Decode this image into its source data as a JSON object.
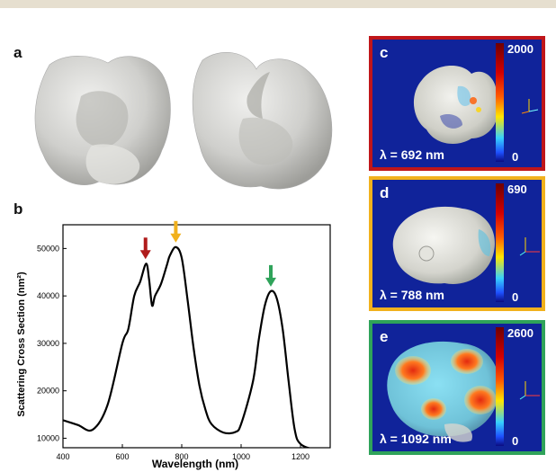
{
  "panels": {
    "a": {
      "letter": "a"
    },
    "b": {
      "letter": "b"
    },
    "c": {
      "letter": "c",
      "lambda": "λ = 692 nm",
      "cbar_max": "2000",
      "cbar_min": "0",
      "border": "#c0161a"
    },
    "d": {
      "letter": "d",
      "lambda": "λ = 788 nm",
      "cbar_max": "690",
      "cbar_min": "0",
      "border": "#f1b11d"
    },
    "e": {
      "letter": "e",
      "lambda": "λ = 1092 nm",
      "cbar_max": "2600",
      "cbar_min": "0",
      "border": "#2fa35a"
    }
  },
  "chart_data": {
    "type": "line",
    "xlabel": "Wavelength (nm)",
    "ylabel": "Scattering Cross Section (nm²)",
    "xlim": [
      400,
      1300
    ],
    "ylim": [
      8000,
      55000
    ],
    "xticks": [
      400,
      600,
      800,
      1000,
      1200
    ],
    "yticks": [
      10000,
      20000,
      30000,
      40000,
      50000
    ],
    "series": [
      {
        "color": "#000000",
        "x": [
          400,
          450,
          500,
          550,
          600,
          620,
          640,
          660,
          680,
          690,
          700,
          710,
          730,
          750,
          760,
          780,
          800,
          820,
          840,
          860,
          880,
          900,
          940,
          980,
          1000,
          1040,
          1060,
          1080,
          1100,
          1120,
          1140,
          1160,
          1180,
          1200,
          1250,
          1300
        ],
        "y": [
          13800,
          12800,
          11800,
          17000,
          30000,
          33000,
          40000,
          43000,
          46800,
          43500,
          38000,
          40000,
          42500,
          46500,
          48500,
          50300,
          48000,
          39000,
          29000,
          21000,
          16000,
          13000,
          11200,
          11300,
          13000,
          22000,
          31000,
          38000,
          41000,
          39500,
          33000,
          22000,
          12000,
          8800,
          7600,
          7200
        ]
      }
    ],
    "annotations": [
      {
        "type": "arrow",
        "x": 678,
        "color": "#b01c1c"
      },
      {
        "type": "arrow",
        "x": 780,
        "color": "#f1b11d"
      },
      {
        "type": "arrow",
        "x": 1100,
        "color": "#2fa35a"
      }
    ]
  }
}
